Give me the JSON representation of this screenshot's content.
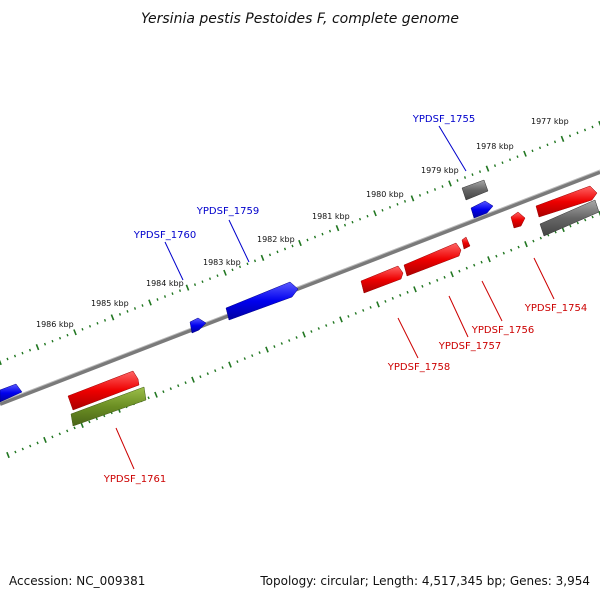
{
  "title": "Yersinia pestis Pestoides F, complete genome",
  "footer": {
    "accession": "Accession: NC_009381",
    "topology": "Topology: circular; Length: 4,517,345 bp; Genes: 3,954"
  },
  "colors": {
    "red": "#ee0000",
    "blue": "#0000ee",
    "gray": "#666666",
    "olive": "#6b8e23",
    "backbone": "#7a7a7a",
    "tick": "#227722"
  },
  "kbp_labels": [
    "1977 kbp",
    "1978 kbp",
    "1979 kbp",
    "1980 kbp",
    "1981 kbp",
    "1982 kbp",
    "1983 kbp",
    "1984 kbp",
    "1985 kbp",
    "1986 kbp"
  ],
  "genes": [
    {
      "name": "YPDSF_1754",
      "color": "red"
    },
    {
      "name": "YPDSF_1755",
      "color": "blue"
    },
    {
      "name": "YPDSF_1756",
      "color": "red"
    },
    {
      "name": "YPDSF_1757",
      "color": "red"
    },
    {
      "name": "YPDSF_1758",
      "color": "red"
    },
    {
      "name": "YPDSF_1759",
      "color": "blue"
    },
    {
      "name": "YPDSF_1760",
      "color": "blue"
    },
    {
      "name": "YPDSF_1761",
      "color": "red"
    }
  ]
}
